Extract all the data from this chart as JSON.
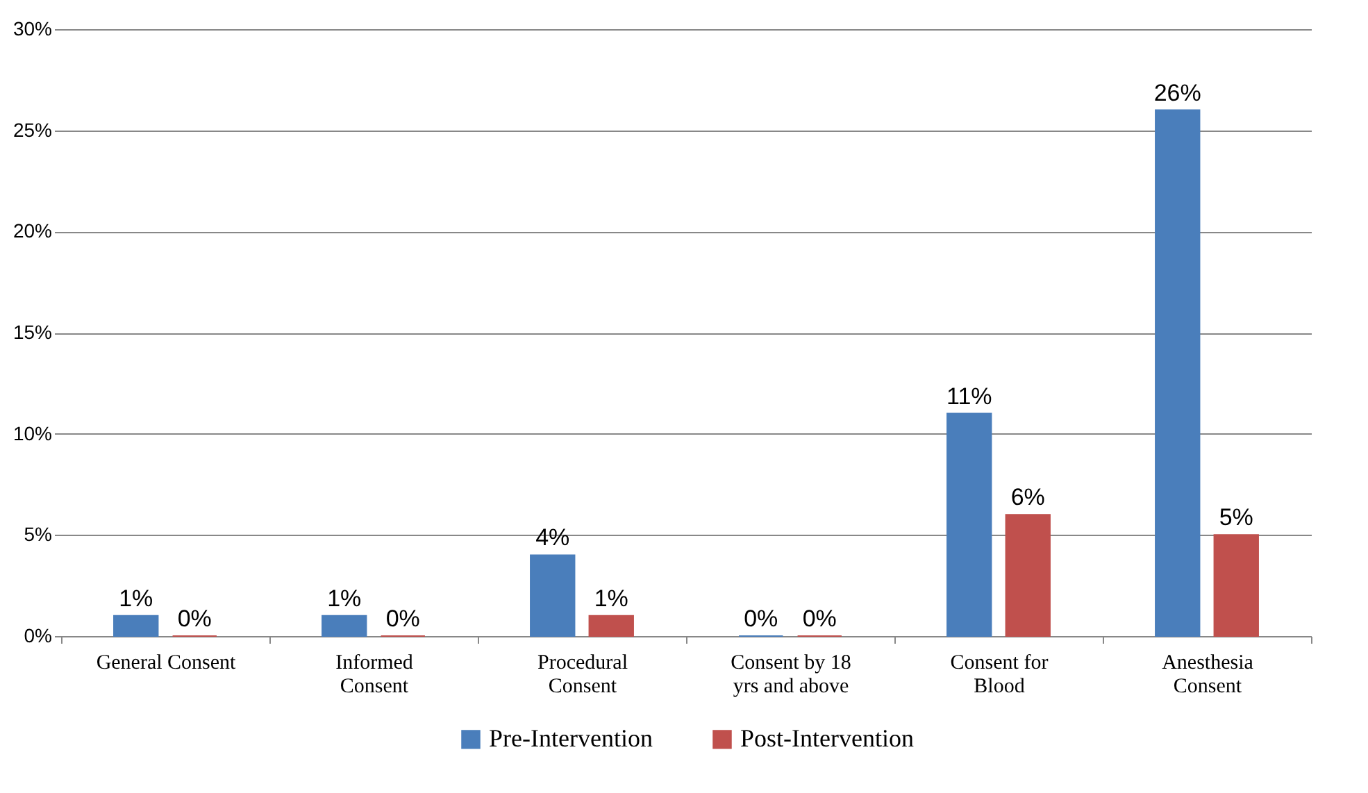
{
  "chart_data": {
    "type": "bar",
    "categories": [
      "General Consent",
      "Informed Consent",
      "Procedural Consent",
      "Consent by 18 yrs and above",
      "Consent for Blood",
      "Anesthesia Consent"
    ],
    "series": [
      {
        "name": "Pre-Intervention",
        "color": "#4a7ebb",
        "values": [
          1,
          1,
          4,
          0,
          11,
          26
        ],
        "value_labels": [
          "1%",
          "1%",
          "4%",
          "0%",
          "11%",
          "26%"
        ]
      },
      {
        "name": "Post-Intervention",
        "color": "#c0504d",
        "values": [
          0,
          0,
          1,
          0,
          6,
          5
        ],
        "value_labels": [
          "0%",
          "0%",
          "1%",
          "0%",
          "6%",
          "5%"
        ]
      }
    ],
    "ylim": [
      0,
      30
    ],
    "yticks": [
      {
        "value": 0,
        "label": "0%"
      },
      {
        "value": 5,
        "label": "5%"
      },
      {
        "value": 10,
        "label": "10%"
      },
      {
        "value": 15,
        "label": "15%"
      },
      {
        "value": 20,
        "label": "20%"
      },
      {
        "value": 25,
        "label": "25%"
      },
      {
        "value": 30,
        "label": "30%"
      }
    ],
    "grid": "y",
    "legend": "bottom"
  }
}
